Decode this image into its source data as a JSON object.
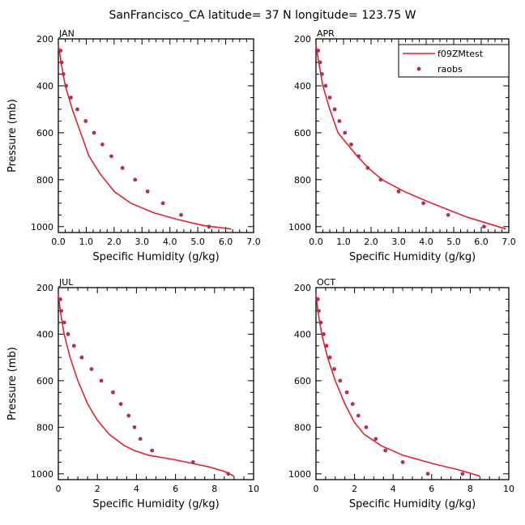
{
  "title": "SanFrancisco_CA  latitude= 37 N longitude= 123.75 W",
  "colors": {
    "model": "#e0242c",
    "obs": "#b0305a"
  },
  "legend": {
    "model": "f09ZMtest",
    "obs": "raobs",
    "placement": "top-right of APR panel"
  },
  "chart_data": [
    {
      "type": "line",
      "month": "JAN",
      "xlabel": "Specific Humidity (g/kg)",
      "ylabel": "Pressure (mb)",
      "xlim": [
        0,
        7
      ],
      "ylim": [
        1025,
        200
      ],
      "xticks": [
        "0.0",
        "1.0",
        "2.0",
        "3.0",
        "4.0",
        "5.0",
        "6.0",
        "7.0"
      ],
      "yticks": [
        "200",
        "400",
        "600",
        "800",
        "1000"
      ],
      "series": [
        {
          "name": "f09ZMtest",
          "type": "line",
          "x": [
            0.0,
            0.1,
            0.25,
            0.5,
            0.8,
            1.1,
            1.5,
            2.0,
            2.6,
            3.4,
            4.3,
            5.2,
            6.2
          ],
          "y": [
            225,
            300,
            400,
            500,
            600,
            700,
            775,
            850,
            900,
            940,
            970,
            995,
            1010
          ]
        },
        {
          "name": "raobs",
          "type": "scatter",
          "x": [
            0.08,
            0.12,
            0.18,
            0.28,
            0.45,
            0.68,
            0.98,
            1.28,
            1.58,
            1.9,
            2.3,
            2.75,
            3.2,
            3.75,
            4.4,
            5.4
          ],
          "y": [
            250,
            300,
            350,
            400,
            450,
            500,
            550,
            600,
            650,
            700,
            750,
            800,
            850,
            900,
            950,
            1000
          ]
        }
      ]
    },
    {
      "type": "line",
      "month": "APR",
      "xlabel": "Specific Humidity (g/kg)",
      "ylabel": "Pressure (mb)",
      "xlim": [
        0,
        7
      ],
      "ylim": [
        1025,
        200
      ],
      "xticks": [
        "0.0",
        "1.0",
        "2.0",
        "3.0",
        "4.0",
        "5.0",
        "6.0",
        "7.0"
      ],
      "yticks": [
        "200",
        "400",
        "600",
        "800",
        "1000"
      ],
      "series": [
        {
          "name": "f09ZMtest",
          "type": "line",
          "x": [
            0.0,
            0.1,
            0.25,
            0.5,
            0.8,
            1.15,
            1.5,
            1.9,
            2.4,
            3.2,
            4.2,
            5.5,
            6.9
          ],
          "y": [
            225,
            300,
            400,
            500,
            600,
            650,
            700,
            750,
            800,
            850,
            900,
            960,
            1010
          ]
        },
        {
          "name": "raobs",
          "type": "scatter",
          "x": [
            0.08,
            0.15,
            0.22,
            0.35,
            0.5,
            0.68,
            0.85,
            1.05,
            1.28,
            1.55,
            1.88,
            2.35,
            3.0,
            3.9,
            4.8,
            6.1
          ],
          "y": [
            250,
            300,
            350,
            400,
            450,
            500,
            550,
            600,
            650,
            700,
            750,
            800,
            850,
            900,
            950,
            1000
          ]
        }
      ]
    },
    {
      "type": "line",
      "month": "JUL",
      "xlabel": "Specific Humidity (g/kg)",
      "ylabel": "Pressure (mb)",
      "xlim": [
        0,
        10
      ],
      "ylim": [
        1025,
        200
      ],
      "xticks": [
        "0",
        "2",
        "4",
        "6",
        "8",
        "10"
      ],
      "yticks": [
        "200",
        "400",
        "600",
        "800",
        "1000"
      ],
      "series": [
        {
          "name": "f09ZMtest",
          "type": "line",
          "x": [
            0.0,
            0.1,
            0.3,
            0.6,
            1.0,
            1.5,
            2.0,
            2.6,
            3.4,
            3.9,
            4.6,
            6.0,
            7.7,
            8.5,
            9.0
          ],
          "y": [
            225,
            300,
            400,
            500,
            600,
            700,
            770,
            830,
            880,
            900,
            920,
            940,
            970,
            990,
            1010
          ]
        },
        {
          "name": "raobs",
          "type": "scatter",
          "x": [
            0.1,
            0.15,
            0.3,
            0.5,
            0.8,
            1.2,
            1.7,
            2.2,
            2.8,
            3.2,
            3.6,
            3.9,
            4.2,
            4.8,
            6.9,
            8.7
          ],
          "y": [
            250,
            300,
            350,
            400,
            450,
            500,
            550,
            600,
            650,
            700,
            750,
            800,
            850,
            900,
            950,
            1000
          ]
        }
      ]
    },
    {
      "type": "line",
      "month": "OCT",
      "xlabel": "Specific Humidity (g/kg)",
      "ylabel": "Pressure (mb)",
      "xlim": [
        0,
        10
      ],
      "ylim": [
        1025,
        200
      ],
      "xticks": [
        "0",
        "2",
        "4",
        "6",
        "8",
        "10"
      ],
      "yticks": [
        "200",
        "400",
        "600",
        "800",
        "1000"
      ],
      "series": [
        {
          "name": "f09ZMtest",
          "type": "line",
          "x": [
            0.0,
            0.1,
            0.3,
            0.6,
            1.0,
            1.5,
            2.0,
            2.5,
            3.4,
            4.5,
            6.0,
            7.5,
            8.5
          ],
          "y": [
            225,
            300,
            400,
            500,
            600,
            700,
            780,
            830,
            880,
            920,
            955,
            985,
            1010
          ]
        },
        {
          "name": "raobs",
          "type": "scatter",
          "x": [
            0.1,
            0.15,
            0.25,
            0.4,
            0.55,
            0.72,
            0.95,
            1.25,
            1.6,
            1.9,
            2.2,
            2.6,
            3.1,
            3.6,
            4.5,
            5.8,
            7.6
          ],
          "y": [
            250,
            300,
            350,
            400,
            450,
            500,
            550,
            600,
            650,
            700,
            750,
            800,
            850,
            900,
            950,
            1000,
            1000
          ]
        }
      ]
    }
  ]
}
